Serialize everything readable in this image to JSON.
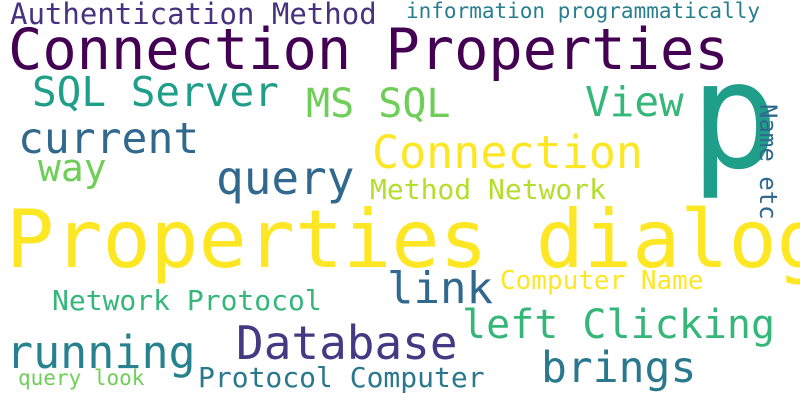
{
  "words": {
    "authentication_method": {
      "text": "Authentication Method",
      "color": "#46327e"
    },
    "information_programmatically": {
      "text": "information programmatically",
      "color": "#277f8e"
    },
    "connection_properties": {
      "text": "Connection Properties",
      "color": "#440154"
    },
    "sql_server": {
      "text": "SQL Server",
      "color": "#1f9e89"
    },
    "ms_sql": {
      "text": "MS SQL",
      "color": "#6ece58"
    },
    "view": {
      "text": "View",
      "color": "#35b779"
    },
    "p": {
      "text": "p",
      "color": "#1f9e89"
    },
    "current": {
      "text": "current",
      "color": "#31688e"
    },
    "way": {
      "text": "way",
      "color": "#6ece58"
    },
    "connection": {
      "text": "Connection",
      "color": "#fde725"
    },
    "name_etc": {
      "text": "Name etc",
      "color": "#31688e"
    },
    "query": {
      "text": "query",
      "color": "#31688e"
    },
    "method_network": {
      "text": "Method Network",
      "color": "#b5de2b"
    },
    "properties_dialog": {
      "text": "Properties dialog",
      "color": "#fde725"
    },
    "link": {
      "text": "link",
      "color": "#31688e"
    },
    "computer_name": {
      "text": "Computer Name",
      "color": "#fde725"
    },
    "network_protocol": {
      "text": "Network Protocol",
      "color": "#35b779"
    },
    "left_clicking": {
      "text": "left Clicking",
      "color": "#35b779"
    },
    "database": {
      "text": "Database",
      "color": "#443983"
    },
    "running": {
      "text": "running",
      "color": "#26828e"
    },
    "brings": {
      "text": "brings",
      "color": "#2a788e"
    },
    "query_look": {
      "text": "query look",
      "color": "#6ece58"
    },
    "protocol_computer": {
      "text": "Protocol Computer",
      "color": "#2a788e"
    }
  }
}
